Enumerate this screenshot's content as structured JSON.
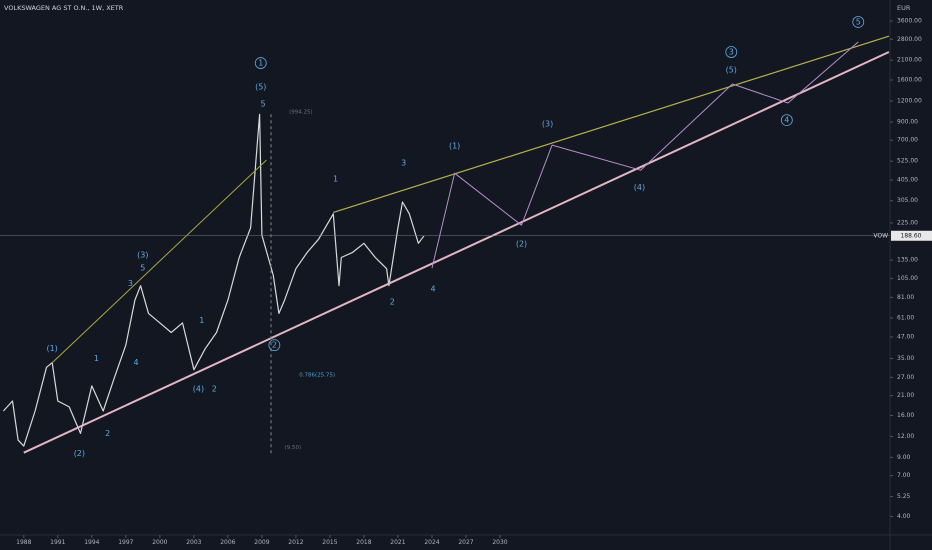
{
  "chart_data": {
    "type": "line",
    "title": "VOLKSWAGEN AG ST O.N., 1W, XETR",
    "y_unit": "EUR",
    "log_scale": true,
    "grid": false,
    "xlim": [
      1985.9,
      2064.4
    ],
    "ylim": [
      3.1,
      4800
    ],
    "xticks": [
      1988,
      1991,
      1994,
      1997,
      2000,
      2003,
      2006,
      2009,
      2012,
      2015,
      2018,
      2021,
      2024,
      2027,
      2030
    ],
    "yticks": [
      {
        "value": 3600,
        "label": "3600.00"
      },
      {
        "value": 2800,
        "label": "2800.00"
      },
      {
        "value": 2100,
        "label": "2100.00"
      },
      {
        "value": 1600,
        "label": "1600.00"
      },
      {
        "value": 1200,
        "label": "1200.00"
      },
      {
        "value": 900,
        "label": "900.00"
      },
      {
        "value": 700,
        "label": "700.00"
      },
      {
        "value": 525,
        "label": "525.00"
      },
      {
        "value": 405,
        "label": "405.00"
      },
      {
        "value": 305,
        "label": "305.00"
      },
      {
        "value": 225,
        "label": "225.00"
      },
      {
        "value": 135,
        "label": "135.00"
      },
      {
        "value": 105,
        "label": "105.00"
      },
      {
        "value": 81,
        "label": "81.00"
      },
      {
        "value": 61,
        "label": "61.00"
      },
      {
        "value": 47,
        "label": "47.00"
      },
      {
        "value": 35,
        "label": "35.00"
      },
      {
        "value": 27,
        "label": "27.00"
      },
      {
        "value": 21,
        "label": "21.00"
      },
      {
        "value": 16,
        "label": "16.00"
      },
      {
        "value": 12,
        "label": "12.00"
      },
      {
        "value": 9,
        "label": "9.00"
      },
      {
        "value": 7,
        "label": "7.00"
      },
      {
        "value": 5.25,
        "label": "5.25"
      },
      {
        "value": 4,
        "label": "4.00"
      }
    ],
    "symbol": "VOW",
    "last_price": 188.6,
    "last_price_label": "188.60",
    "series": [
      {
        "color": "#d9d9d9",
        "width": 1.2,
        "x": [
          1986.2,
          1987.0,
          1987.5,
          1988,
          1989,
          1990,
          1990.5,
          1991,
          1992,
          1993,
          1994,
          1995,
          1996,
          1997,
          1997.8,
          1998.3,
          1999,
          2000,
          2001,
          2002,
          2003,
          2004,
          2005,
          2006,
          2007,
          2008,
          2008.8,
          2009,
          2010,
          2010.5,
          2011,
          2012,
          2013,
          2014,
          2015.3,
          2015.8,
          2016,
          2017,
          2018,
          2019,
          2020,
          2020.2,
          2021,
          2021.4,
          2022,
          2022.8,
          2023.3
        ],
        "values": [
          17,
          19.5,
          11.4,
          10.5,
          17,
          31,
          33,
          19.5,
          18,
          12.5,
          24,
          17,
          27,
          42,
          78,
          95,
          65,
          57,
          50,
          57,
          30,
          40,
          50,
          78,
          140,
          210,
          1000,
          190,
          110,
          65,
          78,
          120,
          150,
          180,
          255,
          95,
          140,
          150,
          170,
          140,
          120,
          95,
          210,
          300,
          255,
          170,
          188.6
        ]
      },
      {
        "color": "#e3b6c4",
        "width": 2,
        "x": [
          1988,
          2064.3
        ],
        "values": [
          9.6,
          2350
        ]
      },
      {
        "color": "#b8b24a",
        "width": 1.2,
        "x": [
          2015.3,
          2064.3
        ],
        "values": [
          260,
          2920
        ]
      },
      {
        "color": "#a9a83f",
        "width": 1,
        "x": [
          1990.5,
          2009.4
        ],
        "values": [
          33,
          533
        ]
      },
      {
        "color": "#b48ec8",
        "width": 1,
        "x": [
          2024.0,
          2026.0,
          2031.9,
          2034.6,
          2042.4,
          2050.5,
          2055.4,
          2061.6
        ],
        "values": [
          121,
          445,
          218,
          655,
          464,
          1514,
          1167,
          2700
        ]
      },
      {
        "color": "#888888",
        "width": 1,
        "dash": true,
        "x": [
          2009.8,
          2009.8
        ],
        "values": [
          1000,
          9.5
        ]
      }
    ],
    "annotations": [
      {
        "text": "(1)",
        "x": 1990.5,
        "y": 40
      },
      {
        "text": "(2)",
        "x": 1992.9,
        "y": 9.5
      },
      {
        "text": "1",
        "x": 1994.4,
        "y": 35
      },
      {
        "text": "2",
        "x": 1995.4,
        "y": 12.5
      },
      {
        "text": "3",
        "x": 1997.4,
        "y": 98
      },
      {
        "text": "(3)",
        "x": 1998.5,
        "y": 145
      },
      {
        "text": "5",
        "x": 1998.5,
        "y": 121
      },
      {
        "text": "4",
        "x": 1997.9,
        "y": 33
      },
      {
        "text": "1",
        "x": 2003.7,
        "y": 59
      },
      {
        "text": "(4)",
        "x": 2003.4,
        "y": 23
      },
      {
        "text": "2",
        "x": 2004.8,
        "y": 23
      },
      {
        "text": "1",
        "x": 2008.9,
        "y": 2020,
        "circled": true
      },
      {
        "text": "(5)",
        "x": 2008.9,
        "y": 1450
      },
      {
        "text": "5",
        "x": 2009.1,
        "y": 1150
      },
      {
        "text": "2",
        "x": 2010.1,
        "y": 42,
        "circled": true
      },
      {
        "text": "1",
        "x": 2015.5,
        "y": 410
      },
      {
        "text": "2",
        "x": 2020.5,
        "y": 76
      },
      {
        "text": "3",
        "x": 2021.5,
        "y": 512
      },
      {
        "text": "4",
        "x": 2024.1,
        "y": 91
      },
      {
        "text": "(1)",
        "x": 2026.0,
        "y": 645
      },
      {
        "text": "(2)",
        "x": 2031.9,
        "y": 168
      },
      {
        "text": "(3)",
        "x": 2034.2,
        "y": 873
      },
      {
        "text": "(4)",
        "x": 2042.3,
        "y": 367
      },
      {
        "text": "3",
        "x": 2050.4,
        "y": 2350,
        "circled": true
      },
      {
        "text": "(5)",
        "x": 2050.4,
        "y": 1830
      },
      {
        "text": "4",
        "x": 2055.3,
        "y": 923,
        "circled": true
      },
      {
        "text": "5",
        "x": 2061.6,
        "y": 3550,
        "circled": true
      },
      {
        "text": "(994.25)",
        "x": 2011.4,
        "y": 1030,
        "muted": true
      },
      {
        "text": "0.786(25.75)",
        "x": 2012.3,
        "y": 27.8,
        "fib": true
      },
      {
        "text": "(9.50)",
        "x": 2011.0,
        "y": 10.3,
        "muted": true
      }
    ]
  }
}
